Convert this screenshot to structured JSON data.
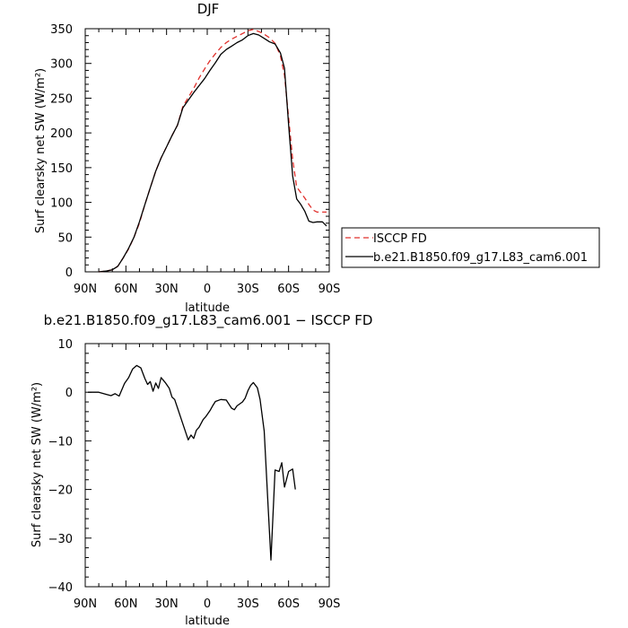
{
  "chart_data": [
    {
      "type": "line",
      "title": "DJF",
      "xlabel": "latitude",
      "ylabel": "Surf clearsky net SW (W/m²)",
      "xlim": [
        -90,
        90
      ],
      "ylim": [
        0,
        350
      ],
      "x_ticks": [
        -90,
        -60,
        -30,
        0,
        30,
        60,
        90
      ],
      "x_tick_labels": [
        "90N",
        "60N",
        "30N",
        "0",
        "30S",
        "60S",
        "90S"
      ],
      "y_ticks": [
        0,
        50,
        100,
        150,
        200,
        250,
        300,
        350
      ],
      "y_tick_labels": [
        "0",
        "50",
        "100",
        "150",
        "200",
        "250",
        "300",
        "350"
      ],
      "grid": false,
      "legend": "right-outside",
      "series": [
        {
          "name": "ISCCP FD",
          "color": "#e0302c",
          "dash": "dashed",
          "points": [
            [
              -80,
              0
            ],
            [
              -75,
              1
            ],
            [
              -70,
              3
            ],
            [
              -66,
              8
            ],
            [
              -62,
              20
            ],
            [
              -58,
              33
            ],
            [
              -54,
              50
            ],
            [
              -50,
              70
            ],
            [
              -46,
              97
            ],
            [
              -42,
              121
            ],
            [
              -38,
              145
            ],
            [
              -34,
              164
            ],
            [
              -30,
              180
            ],
            [
              -26,
              196
            ],
            [
              -22,
              211
            ],
            [
              -18,
              238
            ],
            [
              -14,
              251
            ],
            [
              -10,
              264
            ],
            [
              -6,
              279
            ],
            [
              -2,
              292
            ],
            [
              2,
              304
            ],
            [
              6,
              314
            ],
            [
              10,
              323
            ],
            [
              14,
              330
            ],
            [
              18,
              335
            ],
            [
              22,
              339
            ],
            [
              26,
              343
            ],
            [
              30,
              347
            ],
            [
              34,
              349
            ],
            [
              38,
              346
            ],
            [
              42,
              342
            ],
            [
              46,
              337
            ],
            [
              50,
              329
            ],
            [
              54,
              311
            ],
            [
              57,
              283
            ],
            [
              60,
              222
            ],
            [
              63,
              162
            ],
            [
              66,
              122
            ],
            [
              69,
              114
            ],
            [
              72,
              106
            ],
            [
              75,
              97
            ],
            [
              78,
              89
            ],
            [
              81,
              86
            ],
            [
              85,
              86
            ],
            [
              88,
              86
            ]
          ]
        },
        {
          "name": "b.e21.B1850.f09_g17.L83_cam6.001",
          "color": "#000000",
          "dash": "solid",
          "points": [
            [
              -80,
              0
            ],
            [
              -75,
              1
            ],
            [
              -70,
              3
            ],
            [
              -66,
              8
            ],
            [
              -62,
              20
            ],
            [
              -58,
              34
            ],
            [
              -54,
              50
            ],
            [
              -50,
              72
            ],
            [
              -46,
              97
            ],
            [
              -42,
              121
            ],
            [
              -38,
              145
            ],
            [
              -34,
              164
            ],
            [
              -30,
              180
            ],
            [
              -26,
              196
            ],
            [
              -22,
              211
            ],
            [
              -18,
              236
            ],
            [
              -14,
              247
            ],
            [
              -10,
              258
            ],
            [
              -6,
              268
            ],
            [
              -2,
              278
            ],
            [
              2,
              290
            ],
            [
              6,
              301
            ],
            [
              10,
              313
            ],
            [
              14,
              320
            ],
            [
              18,
              325
            ],
            [
              22,
              330
            ],
            [
              26,
              334
            ],
            [
              30,
              340
            ],
            [
              34,
              343
            ],
            [
              38,
              341
            ],
            [
              42,
              336
            ],
            [
              46,
              331
            ],
            [
              50,
              328
            ],
            [
              54,
              315
            ],
            [
              57,
              293
            ],
            [
              60,
              212
            ],
            [
              63,
              138
            ],
            [
              66,
              105
            ],
            [
              69,
              97
            ],
            [
              72,
              87
            ],
            [
              75,
              73
            ],
            [
              78,
              71
            ],
            [
              81,
              72
            ],
            [
              85,
              72
            ],
            [
              88,
              66
            ]
          ]
        }
      ]
    },
    {
      "type": "line",
      "title": "b.e21.B1850.f09_g17.L83_cam6.001 − ISCCP FD",
      "xlabel": "latitude",
      "ylabel": "Surf clearsky net SW (W/m²)",
      "xlim": [
        -90,
        90
      ],
      "ylim": [
        -40,
        10
      ],
      "x_ticks": [
        -90,
        -60,
        -30,
        0,
        30,
        60,
        90
      ],
      "x_tick_labels": [
        "90N",
        "60N",
        "30N",
        "0",
        "30S",
        "60S",
        "90S"
      ],
      "y_ticks": [
        -40,
        -30,
        -20,
        -10,
        0,
        10
      ],
      "y_tick_labels": [
        "−40",
        "−30",
        "−20",
        "−10",
        "0",
        "10"
      ],
      "grid": false,
      "series": [
        {
          "color": "#000000",
          "dash": "solid",
          "points": [
            [
              -88,
              0
            ],
            [
              -80,
              0
            ],
            [
              -75,
              -0.4
            ],
            [
              -71,
              -0.7
            ],
            [
              -68,
              -0.3
            ],
            [
              -65,
              -0.8
            ],
            [
              -61,
              1.8
            ],
            [
              -58,
              3
            ],
            [
              -55,
              4.8
            ],
            [
              -52,
              5.5
            ],
            [
              -49,
              5
            ],
            [
              -46,
              2.8
            ],
            [
              -44,
              1.6
            ],
            [
              -42,
              2.2
            ],
            [
              -40,
              0.2
            ],
            [
              -38,
              1.9
            ],
            [
              -36,
              0.8
            ],
            [
              -34,
              3
            ],
            [
              -31,
              2
            ],
            [
              -28,
              0.8
            ],
            [
              -26,
              -1
            ],
            [
              -24,
              -1.5
            ],
            [
              -22,
              -3.2
            ],
            [
              -18,
              -6.5
            ],
            [
              -14,
              -9.8
            ],
            [
              -12,
              -8.8
            ],
            [
              -10,
              -9.5
            ],
            [
              -8,
              -7.8
            ],
            [
              -6,
              -7.2
            ],
            [
              -3,
              -5.6
            ],
            [
              -1,
              -5
            ],
            [
              2,
              -3.8
            ],
            [
              4,
              -2.8
            ],
            [
              6,
              -1.9
            ],
            [
              10,
              -1.5
            ],
            [
              14,
              -1.6
            ],
            [
              18,
              -3.3
            ],
            [
              20,
              -3.6
            ],
            [
              22,
              -2.8
            ],
            [
              26,
              -2
            ],
            [
              28,
              -1.2
            ],
            [
              30,
              0.3
            ],
            [
              32,
              1.4
            ],
            [
              34,
              2
            ],
            [
              37,
              0.9
            ],
            [
              39,
              -1.5
            ],
            [
              42,
              -8
            ],
            [
              45,
              -24
            ],
            [
              47,
              -34.5
            ],
            [
              50,
              -16
            ],
            [
              53,
              -16.3
            ],
            [
              55,
              -14.5
            ],
            [
              57,
              -19.5
            ],
            [
              60,
              -16.3
            ],
            [
              63,
              -15.8
            ],
            [
              65,
              -20
            ]
          ]
        }
      ]
    }
  ]
}
